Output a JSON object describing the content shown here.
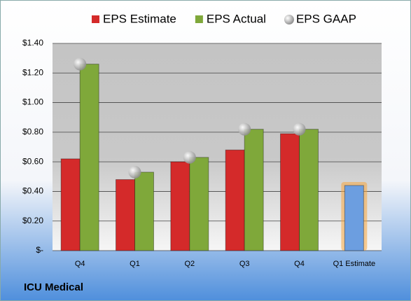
{
  "chart_data": {
    "type": "bar",
    "categories": [
      "Q4",
      "Q1",
      "Q2",
      "Q3",
      "Q4",
      "Q1 Estimate"
    ],
    "series": [
      {
        "name": "EPS Estimate",
        "color": "#d42a2a",
        "values": [
          0.62,
          0.48,
          0.6,
          0.68,
          0.79,
          0.44
        ]
      },
      {
        "name": "EPS Actual",
        "color": "#7fa83a",
        "values": [
          1.26,
          0.53,
          0.63,
          0.82,
          0.82,
          null
        ]
      },
      {
        "name": "EPS GAAP",
        "color": "#b8b8b8",
        "marker": "circle",
        "values": [
          1.26,
          0.53,
          0.63,
          0.82,
          0.82,
          null
        ]
      }
    ],
    "highlight": {
      "index": 5,
      "color": "#6c9ee0",
      "glow": "#f5a640"
    },
    "ylim": [
      0,
      1.4
    ],
    "yticks": [
      {
        "value": 0,
        "label": "$-"
      },
      {
        "value": 0.2,
        "label": "$0.20"
      },
      {
        "value": 0.4,
        "label": "$0.40"
      },
      {
        "value": 0.6,
        "label": "$0.60"
      },
      {
        "value": 0.8,
        "label": "$0.80"
      },
      {
        "value": 1.0,
        "label": "$1.00"
      },
      {
        "value": 1.2,
        "label": "$1.20"
      },
      {
        "value": 1.4,
        "label": "$1.40"
      }
    ],
    "grid": true,
    "footer": "ICU Medical"
  }
}
